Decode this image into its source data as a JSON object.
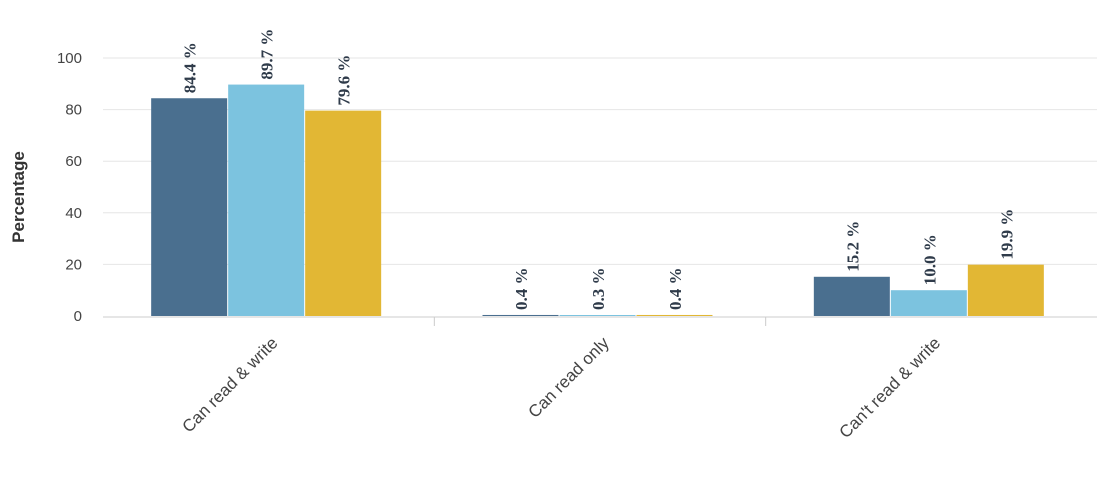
{
  "chart_data": {
    "type": "bar",
    "title": "",
    "xlabel": "",
    "ylabel": "Percentage",
    "ylim": [
      0,
      100
    ],
    "yticks": [
      0,
      20,
      40,
      60,
      80,
      100
    ],
    "grid": true,
    "categories": [
      "Can read & write",
      "Can read only",
      "Can't read & write"
    ],
    "series": [
      {
        "color": "#4a6f8f",
        "values": [
          84.4,
          0.4,
          15.2
        ],
        "labels": [
          "84.4 %",
          "0.4 %",
          "15.2 %"
        ]
      },
      {
        "color": "#7cc3df",
        "values": [
          89.7,
          0.3,
          10.0
        ],
        "labels": [
          "89.7 %",
          "0.3 %",
          "10.0 %"
        ]
      },
      {
        "color": "#e2b734",
        "values": [
          79.6,
          0.4,
          19.9
        ],
        "labels": [
          "79.6 %",
          "0.4 %",
          "19.9 %"
        ]
      }
    ]
  }
}
